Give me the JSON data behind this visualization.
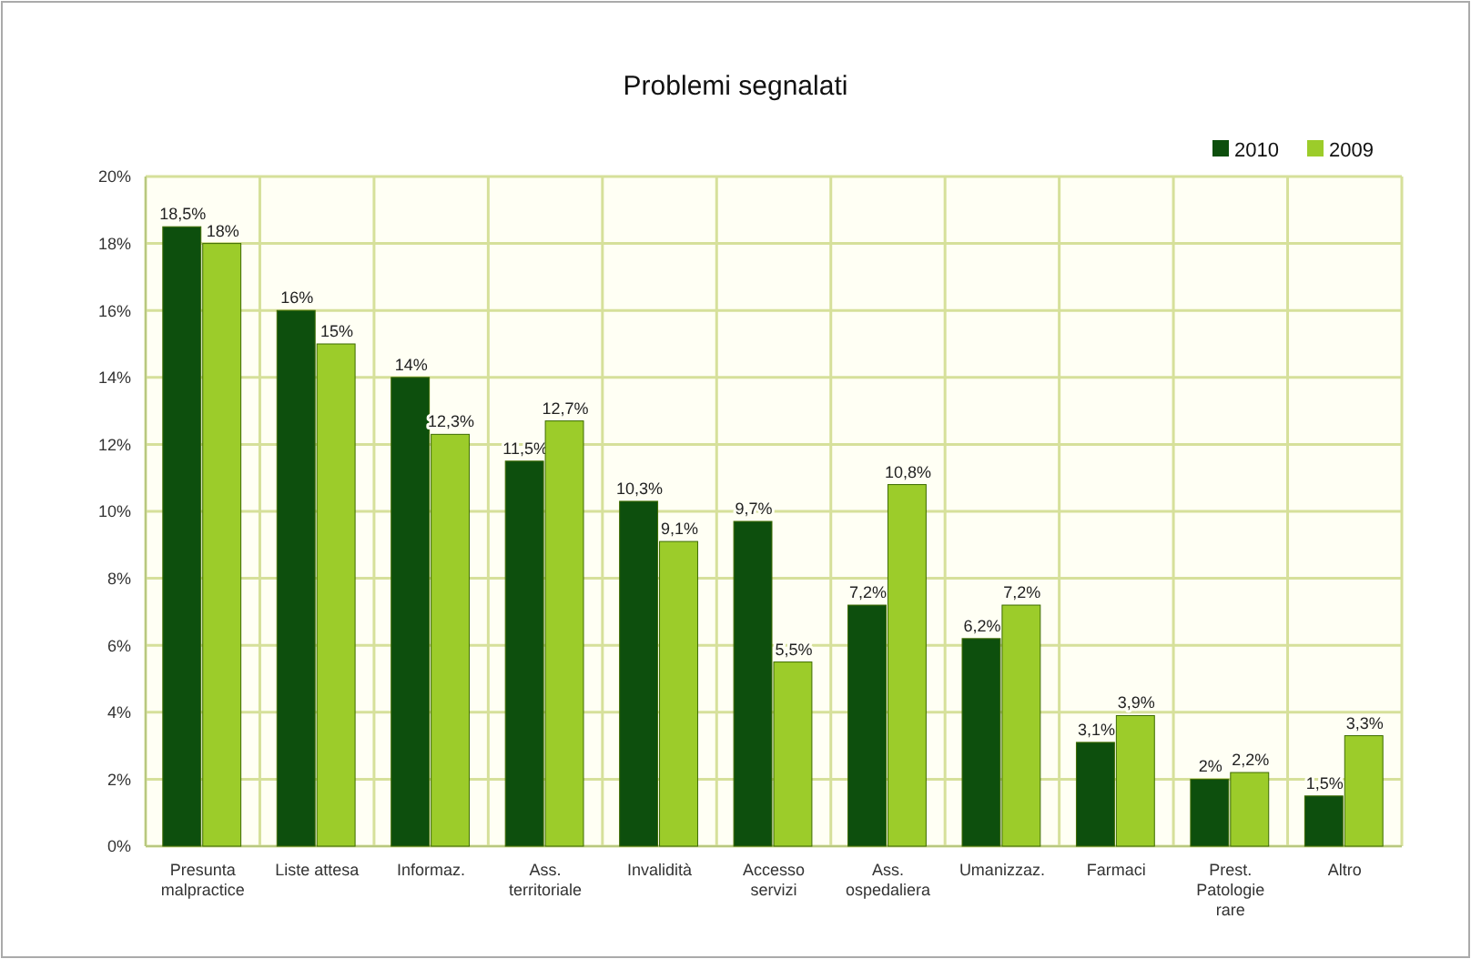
{
  "chart_data": {
    "type": "bar",
    "title": "Problemi segnalati",
    "categories": [
      "Presunta malpractice",
      "Liste attesa",
      "Informaz.",
      "Ass. territoriale",
      "Invalidità",
      "Accesso servizi",
      "Ass. ospedaliera",
      "Umanizzaz.",
      "Farmaci",
      "Prest. Patologie rare",
      "Altro"
    ],
    "series": [
      {
        "name": "2010",
        "color": "#0d4f0d",
        "values": [
          18.5,
          16,
          14,
          11.5,
          10.3,
          9.7,
          7.2,
          6.2,
          3.1,
          2,
          1.5
        ],
        "value_labels": [
          "18,5%",
          "16%",
          "14%",
          "11,5%",
          "10,3%",
          "9,7%",
          "7,2%",
          "6,2%",
          "3,1%",
          "2%",
          "1,5%"
        ]
      },
      {
        "name": "2009",
        "color": "#9ccc2a",
        "values": [
          18,
          15,
          12.3,
          12.7,
          9.1,
          5.5,
          10.8,
          7.2,
          3.9,
          2.2,
          3.3
        ],
        "value_labels": [
          "18%",
          "15%",
          "12,3%",
          "12,7%",
          "9,1%",
          "5,5%",
          "10,8%",
          "7,2%",
          "3,9%",
          "2,2%",
          "3,3%"
        ]
      }
    ],
    "ylim": [
      0,
      20
    ],
    "yticks": [
      {
        "value": 0,
        "label": "0%"
      },
      {
        "value": 2,
        "label": "2%"
      },
      {
        "value": 4,
        "label": "4%"
      },
      {
        "value": 6,
        "label": "6%"
      },
      {
        "value": 8,
        "label": "8%"
      },
      {
        "value": 10,
        "label": "10%"
      },
      {
        "value": 12,
        "label": "12%"
      },
      {
        "value": 14,
        "label": "14%"
      },
      {
        "value": 16,
        "label": "16%"
      },
      {
        "value": 18,
        "label": "18%"
      },
      {
        "value": 20,
        "label": "20%"
      }
    ],
    "grid": true,
    "legend": "top right"
  }
}
